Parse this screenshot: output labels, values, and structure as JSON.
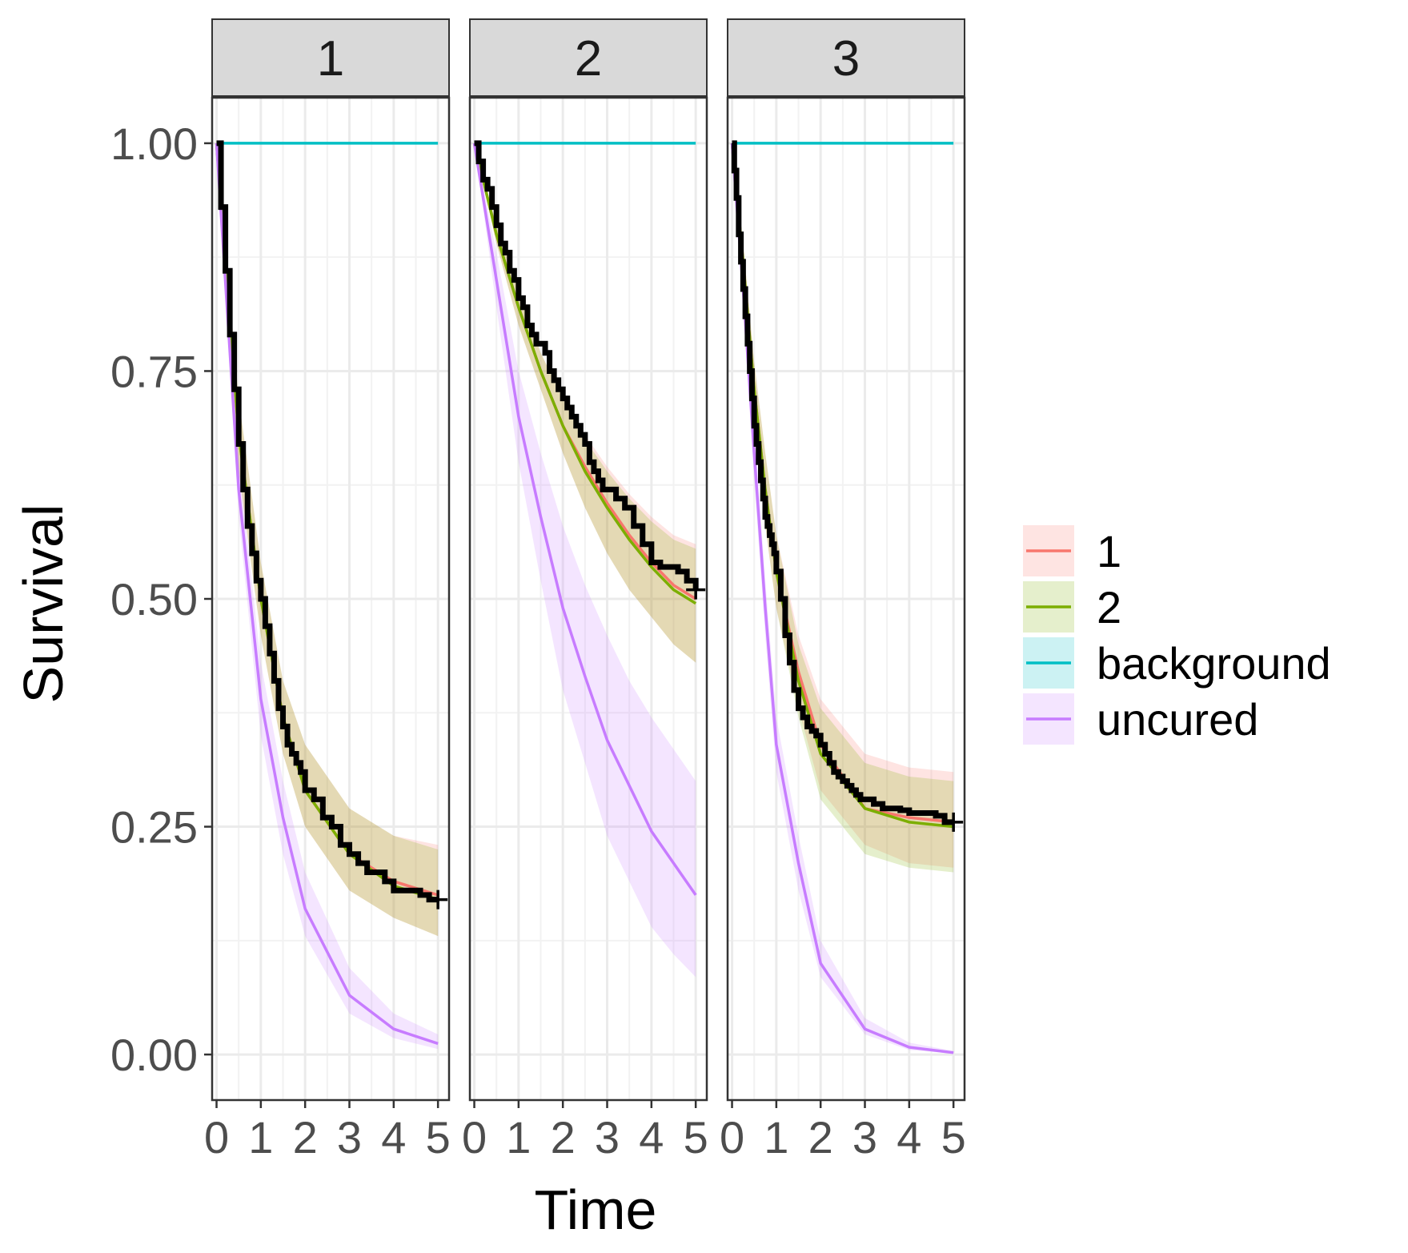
{
  "chart_data": {
    "type": "line",
    "facet_by": "group",
    "facets": [
      "1",
      "2",
      "3"
    ],
    "xlabel": "Time",
    "ylabel": "Survival",
    "xlim": [
      -0.1,
      5.25
    ],
    "ylim": [
      -0.05,
      1.05
    ],
    "x_ticks": [
      0,
      1,
      2,
      3,
      4,
      5
    ],
    "x_tick_labels": [
      "0",
      "1",
      "2",
      "3",
      "4",
      "5"
    ],
    "y_ticks": [
      0,
      0.25,
      0.5,
      0.75,
      1
    ],
    "y_tick_labels": [
      "0.00",
      "0.25",
      "0.50",
      "0.75",
      "1.00"
    ],
    "grid": true,
    "legend_position": "right",
    "legend": [
      {
        "label": "1",
        "color": "#F8766D"
      },
      {
        "label": "2",
        "color": "#7CAE00"
      },
      {
        "label": "background",
        "color": "#00BFC4"
      },
      {
        "label": "uncured",
        "color": "#C77CFF"
      }
    ],
    "km_color": "#000000",
    "series": [
      {
        "facet": "1",
        "curves": [
          {
            "name": "1",
            "x": [
              0,
              0.5,
              1,
              1.5,
              2,
              3,
              4,
              5
            ],
            "y": [
              1,
              0.68,
              0.5,
              0.37,
              0.29,
              0.22,
              0.19,
              0.175
            ],
            "lower": [
              1,
              0.64,
              0.46,
              0.33,
              0.25,
              0.18,
              0.15,
              0.13
            ],
            "upper": [
              1,
              0.72,
              0.54,
              0.41,
              0.34,
              0.27,
              0.24,
              0.23
            ]
          },
          {
            "name": "2",
            "x": [
              0,
              0.5,
              1,
              1.5,
              2,
              3,
              4,
              5
            ],
            "y": [
              1,
              0.68,
              0.5,
              0.37,
              0.29,
              0.22,
              0.185,
              0.17
            ],
            "lower": [
              1,
              0.64,
              0.46,
              0.33,
              0.25,
              0.18,
              0.15,
              0.13
            ],
            "upper": [
              1,
              0.72,
              0.54,
              0.41,
              0.34,
              0.27,
              0.24,
              0.225
            ]
          },
          {
            "name": "background",
            "x": [
              0,
              1,
              2,
              3,
              4,
              5
            ],
            "y": [
              1,
              1,
              1,
              1,
              1,
              1
            ],
            "lower": [
              1,
              1,
              1,
              1,
              1,
              1
            ],
            "upper": [
              1,
              1,
              1,
              1,
              1,
              1
            ]
          },
          {
            "name": "uncured",
            "x": [
              0,
              0.5,
              1,
              1.5,
              2,
              3,
              4,
              5
            ],
            "y": [
              1,
              0.62,
              0.39,
              0.26,
              0.16,
              0.065,
              0.028,
              0.012
            ],
            "lower": [
              1,
              0.59,
              0.35,
              0.22,
              0.13,
              0.045,
              0.018,
              0.006
            ],
            "upper": [
              1,
              0.65,
              0.43,
              0.3,
              0.2,
              0.095,
              0.045,
              0.022
            ]
          }
        ],
        "km": {
          "x": [
            0,
            0.1,
            0.2,
            0.3,
            0.4,
            0.5,
            0.6,
            0.7,
            0.8,
            0.9,
            1,
            1.1,
            1.2,
            1.3,
            1.4,
            1.5,
            1.6,
            1.7,
            1.8,
            1.9,
            2,
            2.2,
            2.4,
            2.6,
            2.8,
            3,
            3.2,
            3.4,
            3.6,
            3.8,
            4,
            4.2,
            4.4,
            4.6,
            4.8,
            5
          ],
          "y": [
            1,
            0.93,
            0.86,
            0.79,
            0.73,
            0.67,
            0.62,
            0.58,
            0.55,
            0.52,
            0.5,
            0.47,
            0.44,
            0.41,
            0.38,
            0.36,
            0.34,
            0.33,
            0.32,
            0.31,
            0.29,
            0.28,
            0.26,
            0.25,
            0.23,
            0.22,
            0.21,
            0.2,
            0.2,
            0.19,
            0.18,
            0.18,
            0.18,
            0.175,
            0.17,
            0.17
          ],
          "censor": [
            5
          ]
        }
      },
      {
        "facet": "2",
        "curves": [
          {
            "name": "1",
            "x": [
              0,
              0.5,
              1,
              1.5,
              2,
              2.5,
              3,
              3.5,
              4,
              4.5,
              5
            ],
            "y": [
              1,
              0.9,
              0.82,
              0.75,
              0.69,
              0.645,
              0.605,
              0.57,
              0.54,
              0.515,
              0.5
            ],
            "lower": [
              1,
              0.89,
              0.8,
              0.73,
              0.66,
              0.6,
              0.55,
              0.51,
              0.48,
              0.45,
              0.43
            ],
            "upper": [
              1,
              0.91,
              0.84,
              0.77,
              0.72,
              0.68,
              0.645,
              0.615,
              0.59,
              0.57,
              0.56
            ]
          },
          {
            "name": "2",
            "x": [
              0,
              0.5,
              1,
              1.5,
              2,
              2.5,
              3,
              3.5,
              4,
              4.5,
              5
            ],
            "y": [
              1,
              0.9,
              0.82,
              0.75,
              0.69,
              0.64,
              0.6,
              0.565,
              0.535,
              0.51,
              0.495
            ],
            "lower": [
              1,
              0.89,
              0.8,
              0.73,
              0.66,
              0.6,
              0.55,
              0.51,
              0.48,
              0.45,
              0.43
            ],
            "upper": [
              1,
              0.91,
              0.84,
              0.77,
              0.72,
              0.675,
              0.64,
              0.61,
              0.585,
              0.565,
              0.555
            ]
          },
          {
            "name": "background",
            "x": [
              0,
              1,
              2,
              3,
              4,
              5
            ],
            "y": [
              1,
              1,
              1,
              1,
              1,
              1
            ],
            "lower": [
              1,
              1,
              1,
              1,
              1,
              1
            ],
            "upper": [
              1,
              1,
              1,
              1,
              1,
              1
            ]
          },
          {
            "name": "uncured",
            "x": [
              0,
              0.5,
              1,
              1.5,
              2,
              2.5,
              3,
              3.5,
              4,
              4.5,
              5
            ],
            "y": [
              1,
              0.85,
              0.7,
              0.59,
              0.49,
              0.415,
              0.345,
              0.295,
              0.245,
              0.21,
              0.175
            ],
            "lower": [
              1,
              0.82,
              0.65,
              0.52,
              0.4,
              0.32,
              0.24,
              0.19,
              0.14,
              0.11,
              0.085
            ],
            "upper": [
              1,
              0.88,
              0.75,
              0.66,
              0.58,
              0.515,
              0.46,
              0.41,
              0.37,
              0.335,
              0.3
            ]
          }
        ],
        "km": {
          "x": [
            0,
            0.1,
            0.2,
            0.3,
            0.4,
            0.5,
            0.6,
            0.7,
            0.8,
            0.9,
            1,
            1.1,
            1.2,
            1.3,
            1.4,
            1.5,
            1.6,
            1.7,
            1.8,
            1.9,
            2,
            2.1,
            2.2,
            2.3,
            2.4,
            2.5,
            2.6,
            2.7,
            2.8,
            2.9,
            3,
            3.2,
            3.4,
            3.6,
            3.8,
            4,
            4.2,
            4.4,
            4.6,
            4.8,
            5
          ],
          "y": [
            1,
            0.98,
            0.96,
            0.95,
            0.93,
            0.91,
            0.89,
            0.88,
            0.86,
            0.85,
            0.83,
            0.82,
            0.8,
            0.79,
            0.78,
            0.78,
            0.77,
            0.75,
            0.74,
            0.73,
            0.72,
            0.71,
            0.7,
            0.69,
            0.68,
            0.67,
            0.65,
            0.64,
            0.63,
            0.62,
            0.62,
            0.61,
            0.6,
            0.58,
            0.56,
            0.54,
            0.535,
            0.535,
            0.53,
            0.52,
            0.51
          ],
          "censor": [
            5
          ]
        }
      },
      {
        "facet": "3",
        "curves": [
          {
            "name": "1",
            "x": [
              0,
              0.25,
              0.5,
              0.75,
              1,
              1.5,
              2,
              3,
              4,
              5
            ],
            "y": [
              1,
              0.87,
              0.73,
              0.62,
              0.53,
              0.42,
              0.34,
              0.27,
              0.26,
              0.255
            ],
            "lower": [
              1,
              0.85,
              0.7,
              0.58,
              0.49,
              0.38,
              0.29,
              0.23,
              0.21,
              0.205
            ],
            "upper": [
              1,
              0.89,
              0.76,
              0.66,
              0.57,
              0.46,
              0.39,
              0.33,
              0.315,
              0.31
            ]
          },
          {
            "name": "2",
            "x": [
              0,
              0.25,
              0.5,
              0.75,
              1,
              1.5,
              2,
              3,
              4,
              5
            ],
            "y": [
              1,
              0.87,
              0.73,
              0.62,
              0.53,
              0.41,
              0.33,
              0.27,
              0.255,
              0.25
            ],
            "lower": [
              1,
              0.85,
              0.7,
              0.58,
              0.49,
              0.37,
              0.28,
              0.22,
              0.205,
              0.2
            ],
            "upper": [
              1,
              0.89,
              0.76,
              0.66,
              0.57,
              0.45,
              0.38,
              0.32,
              0.305,
              0.3
            ]
          },
          {
            "name": "background",
            "x": [
              0,
              1,
              2,
              3,
              4,
              5
            ],
            "y": [
              1,
              1,
              1,
              1,
              1,
              1
            ],
            "lower": [
              1,
              1,
              1,
              1,
              1,
              1
            ],
            "upper": [
              1,
              1,
              1,
              1,
              1,
              1
            ]
          },
          {
            "name": "uncured",
            "x": [
              0,
              0.25,
              0.5,
              0.75,
              1,
              1.5,
              2,
              3,
              4,
              5
            ],
            "y": [
              1,
              0.84,
              0.66,
              0.49,
              0.34,
              0.21,
              0.1,
              0.028,
              0.008,
              0.002
            ],
            "lower": [
              1,
              0.82,
              0.63,
              0.46,
              0.31,
              0.18,
              0.085,
              0.022,
              0.005,
              0.001
            ],
            "upper": [
              1,
              0.86,
              0.69,
              0.52,
              0.37,
              0.24,
              0.125,
              0.04,
              0.013,
              0.004
            ]
          }
        ],
        "km": {
          "x": [
            0,
            0.05,
            0.1,
            0.15,
            0.2,
            0.25,
            0.3,
            0.35,
            0.4,
            0.45,
            0.5,
            0.55,
            0.6,
            0.65,
            0.7,
            0.75,
            0.8,
            0.85,
            0.9,
            0.95,
            1,
            1.1,
            1.2,
            1.3,
            1.4,
            1.5,
            1.6,
            1.7,
            1.8,
            1.9,
            2,
            2.1,
            2.2,
            2.3,
            2.4,
            2.5,
            2.6,
            2.7,
            2.8,
            2.9,
            3,
            3.2,
            3.4,
            3.6,
            3.8,
            4,
            4.2,
            4.4,
            4.6,
            4.8,
            5
          ],
          "y": [
            1,
            0.97,
            0.94,
            0.9,
            0.87,
            0.84,
            0.81,
            0.78,
            0.75,
            0.72,
            0.69,
            0.67,
            0.65,
            0.63,
            0.61,
            0.59,
            0.58,
            0.57,
            0.56,
            0.55,
            0.53,
            0.5,
            0.46,
            0.43,
            0.4,
            0.38,
            0.37,
            0.36,
            0.355,
            0.35,
            0.34,
            0.33,
            0.32,
            0.31,
            0.305,
            0.3,
            0.295,
            0.29,
            0.285,
            0.28,
            0.28,
            0.275,
            0.27,
            0.27,
            0.268,
            0.265,
            0.265,
            0.265,
            0.262,
            0.255,
            0.255
          ],
          "censor": [
            5
          ]
        }
      }
    ]
  }
}
